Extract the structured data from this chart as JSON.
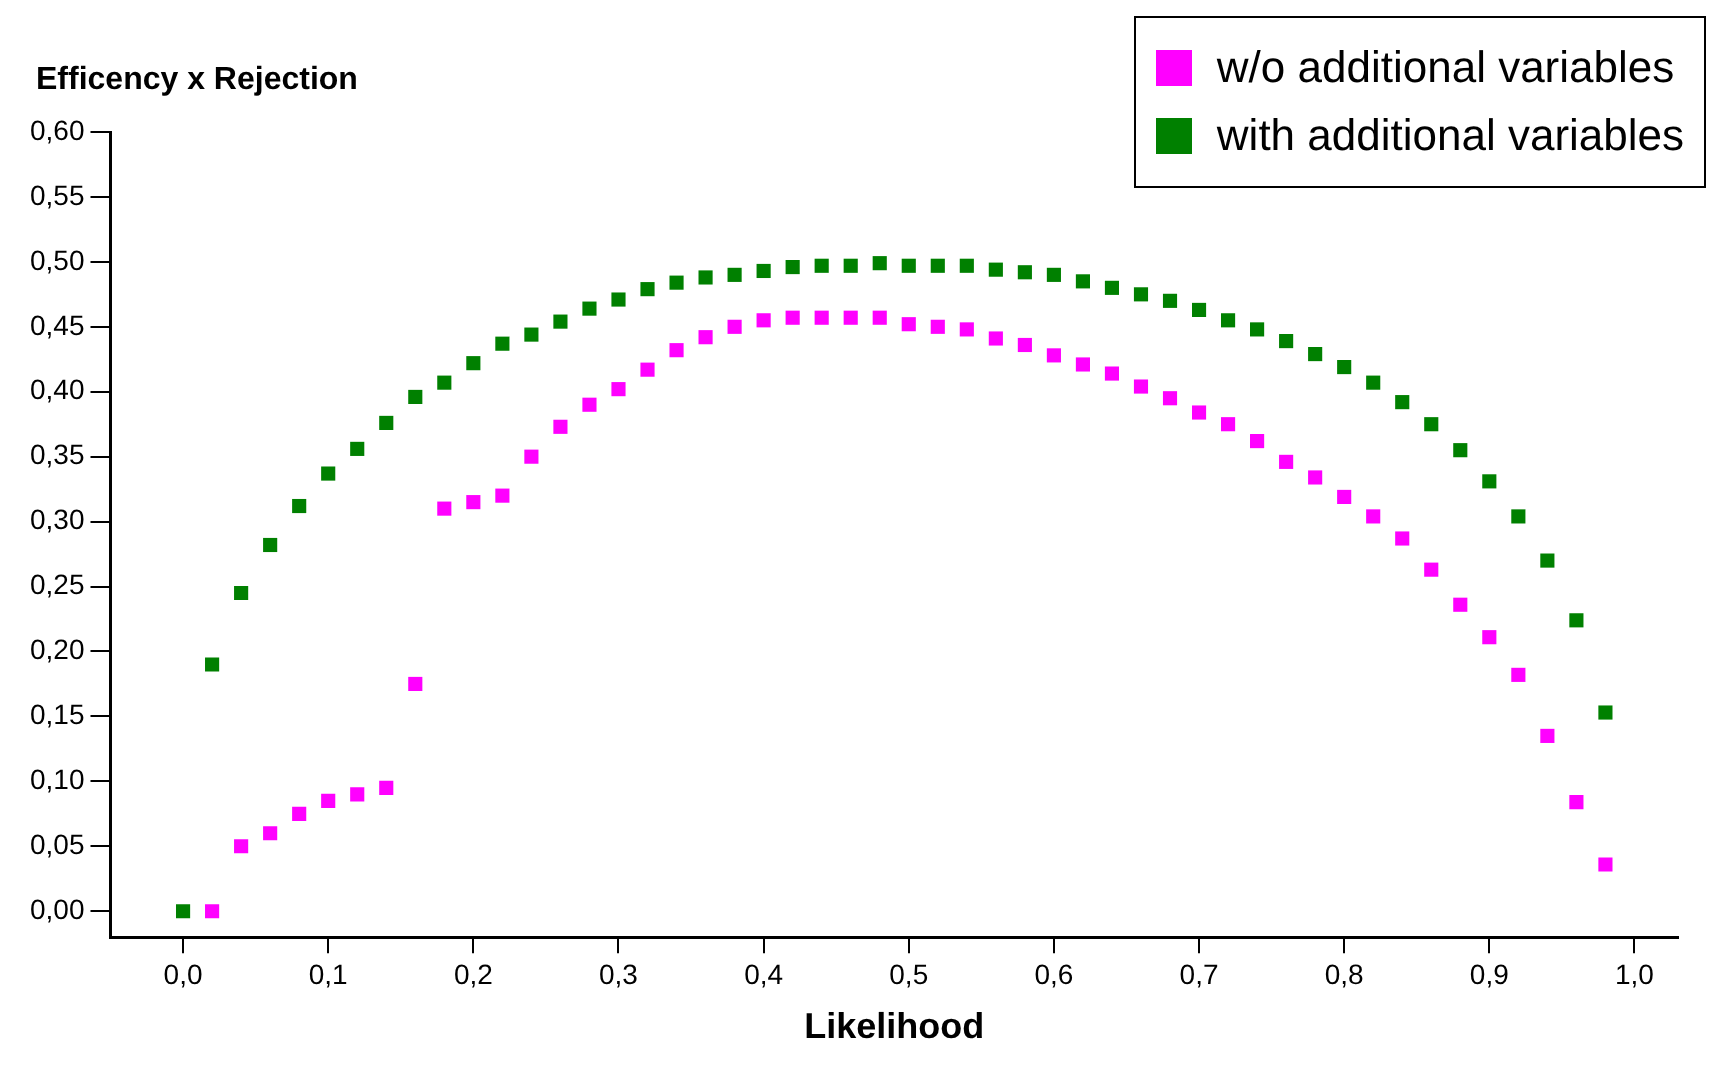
{
  "chart_data": {
    "type": "scatter",
    "ylabel": "Efficency x Rejection",
    "xlabel": "Likelihood",
    "marker": "square",
    "legend": "top right",
    "grid": false,
    "xlim": [
      -0.05,
      1.03
    ],
    "ylim": [
      -0.02,
      0.6
    ],
    "xticks": [
      {
        "value": 0,
        "label": "0,0"
      },
      {
        "value": 0.1,
        "label": "0,1"
      },
      {
        "value": 0.2,
        "label": "0,2"
      },
      {
        "value": 0.3,
        "label": "0,3"
      },
      {
        "value": 0.4,
        "label": "0,4"
      },
      {
        "value": 0.5,
        "label": "0,5"
      },
      {
        "value": 0.6,
        "label": "0,6"
      },
      {
        "value": 0.7,
        "label": "0,7"
      },
      {
        "value": 0.8,
        "label": "0,8"
      },
      {
        "value": 0.9,
        "label": "0,9"
      },
      {
        "value": 1,
        "label": "1,0"
      }
    ],
    "yticks": [
      {
        "value": 0,
        "label": "0,00"
      },
      {
        "value": 0.05,
        "label": "0,05"
      },
      {
        "value": 0.1,
        "label": "0,10"
      },
      {
        "value": 0.15,
        "label": "0,15"
      },
      {
        "value": 0.2,
        "label": "0,20"
      },
      {
        "value": 0.25,
        "label": "0,25"
      },
      {
        "value": 0.3,
        "label": "0,30"
      },
      {
        "value": 0.35,
        "label": "0,35"
      },
      {
        "value": 0.4,
        "label": "0,40"
      },
      {
        "value": 0.45,
        "label": "0,45"
      },
      {
        "value": 0.5,
        "label": "0,50"
      },
      {
        "value": 0.55,
        "label": "0,55"
      },
      {
        "value": 0.6,
        "label": "0,60"
      }
    ],
    "series": [
      {
        "name": "w/o additional variables",
        "color": "#ff00ff",
        "x": [
          0.02,
          0.04,
          0.06,
          0.08,
          0.1,
          0.12,
          0.14,
          0.16,
          0.18,
          0.2,
          0.22,
          0.24,
          0.26,
          0.28,
          0.3,
          0.32,
          0.34,
          0.36,
          0.38,
          0.4,
          0.42,
          0.44,
          0.46,
          0.48,
          0.5,
          0.52,
          0.54,
          0.56,
          0.58,
          0.6,
          0.62,
          0.64,
          0.66,
          0.68,
          0.7,
          0.72,
          0.74,
          0.76,
          0.78,
          0.8,
          0.82,
          0.84,
          0.86,
          0.88,
          0.9,
          0.92,
          0.94,
          0.96,
          0.98
        ],
        "values": [
          0,
          0.05,
          0.06,
          0.075,
          0.085,
          0.09,
          0.095,
          0.175,
          0.31,
          0.315,
          0.32,
          0.35,
          0.373,
          0.39,
          0.402,
          0.417,
          0.432,
          0.442,
          0.45,
          0.455,
          0.457,
          0.457,
          0.457,
          0.457,
          0.452,
          0.45,
          0.448,
          0.441,
          0.436,
          0.428,
          0.421,
          0.414,
          0.404,
          0.395,
          0.384,
          0.375,
          0.362,
          0.346,
          0.334,
          0.319,
          0.304,
          0.287,
          0.263,
          0.236,
          0.211,
          0.182,
          0.135,
          0.084,
          0.036
        ]
      },
      {
        "name": "with additional variables",
        "color": "#008000",
        "x": [
          0,
          0.02,
          0.04,
          0.06,
          0.08,
          0.1,
          0.12,
          0.14,
          0.16,
          0.18,
          0.2,
          0.22,
          0.24,
          0.26,
          0.28,
          0.3,
          0.32,
          0.34,
          0.36,
          0.38,
          0.4,
          0.42,
          0.44,
          0.46,
          0.48,
          0.5,
          0.52,
          0.54,
          0.56,
          0.58,
          0.6,
          0.62,
          0.64,
          0.66,
          0.68,
          0.7,
          0.72,
          0.74,
          0.76,
          0.78,
          0.8,
          0.82,
          0.84,
          0.86,
          0.88,
          0.9,
          0.92,
          0.94,
          0.96,
          0.98
        ],
        "values": [
          0,
          0.19,
          0.245,
          0.282,
          0.312,
          0.337,
          0.356,
          0.376,
          0.396,
          0.407,
          0.422,
          0.437,
          0.444,
          0.454,
          0.464,
          0.471,
          0.479,
          0.484,
          0.488,
          0.49,
          0.493,
          0.496,
          0.497,
          0.497,
          0.499,
          0.497,
          0.497,
          0.497,
          0.494,
          0.492,
          0.49,
          0.485,
          0.48,
          0.475,
          0.47,
          0.463,
          0.455,
          0.448,
          0.439,
          0.429,
          0.419,
          0.407,
          0.392,
          0.375,
          0.355,
          0.331,
          0.304,
          0.27,
          0.224,
          0.153
        ]
      }
    ]
  }
}
